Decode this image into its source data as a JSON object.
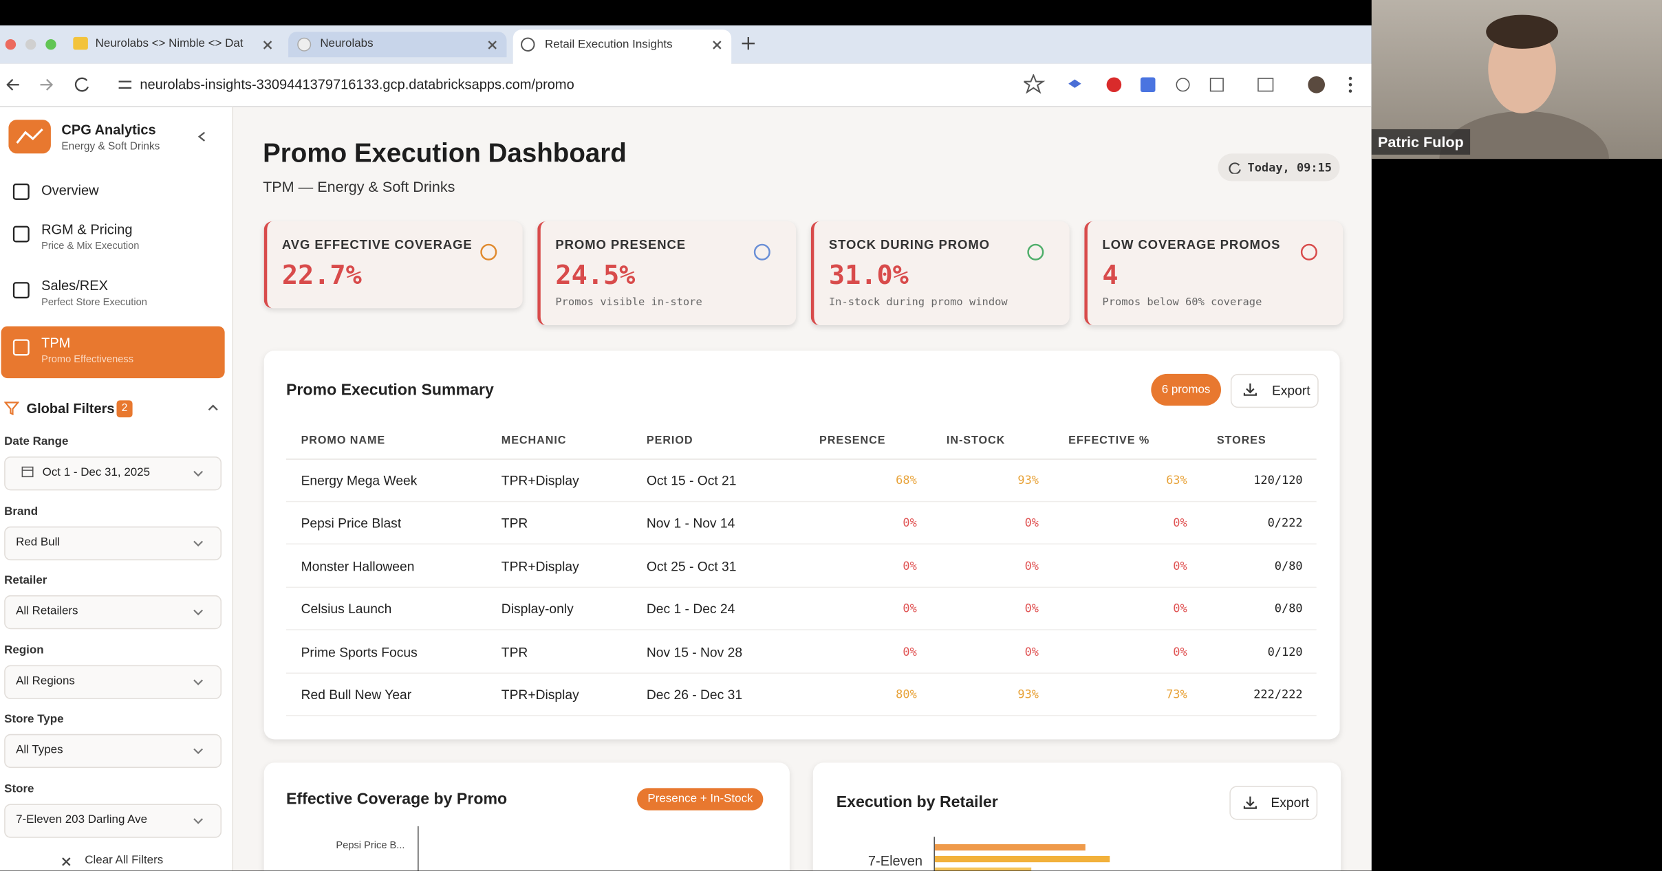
{
  "browser": {
    "tabs": [
      "Neurolabs <> Nimble <> Dat",
      "Neurolabs",
      "Retail Execution Insights"
    ],
    "url": "neurolabs-insights-3309441379716133.gcp.databricksapps.com/promo"
  },
  "sidebar": {
    "app_name": "CPG Analytics",
    "app_subtitle": "Energy & Soft Drinks",
    "nav": [
      {
        "label": "Overview"
      },
      {
        "label": "RGM & Pricing",
        "sub": "Price & Mix Execution"
      },
      {
        "label": "Sales/REX",
        "sub": "Perfect Store Execution"
      },
      {
        "label": "TPM",
        "sub": "Promo Effectiveness"
      }
    ],
    "filters_title": "Global Filters",
    "filters_count": 2,
    "filters": [
      {
        "label": "Date Range",
        "value": "Oct 1 - Dec 31, 2025"
      },
      {
        "label": "Brand",
        "value": "Red Bull"
      },
      {
        "label": "Retailer",
        "value": "All Retailers"
      },
      {
        "label": "Region",
        "value": "All Regions"
      },
      {
        "label": "Store Type",
        "value": "All Types"
      },
      {
        "label": "Store",
        "value": "7-Eleven 203 Darling Ave"
      }
    ],
    "clear": "Clear All Filters"
  },
  "header": {
    "title": "Promo Execution Dashboard",
    "subtitle": "TPM — Energy & Soft Drinks",
    "timestamp": "Today, 09:15"
  },
  "kpis": [
    {
      "label": "AVG EFFECTIVE COVERAGE",
      "value": "22.7%"
    },
    {
      "label": "PROMO PRESENCE",
      "value": "24.5%",
      "sub": "Promos visible in-store"
    },
    {
      "label": "STOCK DURING PROMO",
      "value": "31.0%",
      "sub": "In-stock during promo window"
    },
    {
      "label": "LOW COVERAGE PROMOS",
      "value": "4",
      "sub": "Promos below 60% coverage"
    }
  ],
  "summary": {
    "title": "Promo Execution Summary",
    "badge": "6 promos",
    "export": "Export",
    "columns": [
      "PROMO NAME",
      "MECHANIC",
      "PERIOD",
      "PRESENCE",
      "IN-STOCK",
      "EFFECTIVE %",
      "STORES"
    ],
    "rows": [
      [
        "Energy Mega Week",
        "TPR+Display",
        "Oct 15 - Oct 21",
        "68%",
        "93%",
        "63%",
        "120/120"
      ],
      [
        "Pepsi Price Blast",
        "TPR",
        "Nov 1 - Nov 14",
        "0%",
        "0%",
        "0%",
        "0/222"
      ],
      [
        "Monster Halloween",
        "TPR+Display",
        "Oct 25 - Oct 31",
        "0%",
        "0%",
        "0%",
        "0/80"
      ],
      [
        "Celsius Launch",
        "Display-only",
        "Dec 1 - Dec 24",
        "0%",
        "0%",
        "0%",
        "0/80"
      ],
      [
        "Prime Sports Focus",
        "TPR",
        "Nov 15 - Nov 28",
        "0%",
        "0%",
        "0%",
        "0/120"
      ],
      [
        "Red Bull New Year",
        "TPR+Display",
        "Dec 26 - Dec 31",
        "80%",
        "93%",
        "73%",
        "222/222"
      ]
    ]
  },
  "coverage_panel": {
    "title": "Effective Coverage by Promo",
    "badge": "Presence + In-Stock",
    "first_label": "Pepsi Price B..."
  },
  "retailer_panel": {
    "title": "Execution by Retailer",
    "export": "Export",
    "first_label": "7-Eleven"
  },
  "video": {
    "name": "Patric Fulop"
  }
}
